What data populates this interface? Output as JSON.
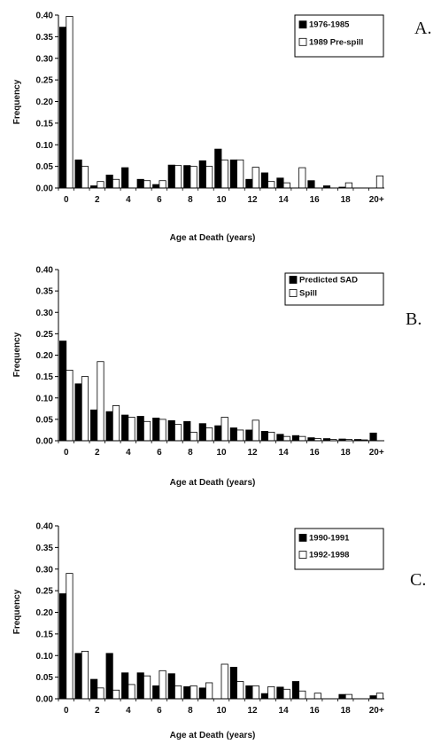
{
  "chart_data": [
    {
      "type": "bar",
      "panel_label": "A.",
      "xlabel": "Age at Death (years)",
      "ylabel": "Frequency",
      "ylim": [
        0,
        0.4
      ],
      "yticks": [
        "0.00",
        "0.05",
        "0.10",
        "0.15",
        "0.20",
        "0.25",
        "0.30",
        "0.35",
        "0.40"
      ],
      "categories": [
        "0",
        "1",
        "2",
        "3",
        "4",
        "5",
        "6",
        "7",
        "8",
        "9",
        "10",
        "11",
        "12",
        "13",
        "14",
        "15",
        "16",
        "17",
        "18",
        "19",
        "20+"
      ],
      "xtick_labels": [
        "0",
        "",
        "2",
        "",
        "4",
        "",
        "6",
        "",
        "8",
        "",
        "10",
        "",
        "12",
        "",
        "14",
        "",
        "16",
        "",
        "18",
        "",
        "20+"
      ],
      "legend_position": "top-right",
      "series": [
        {
          "name": "1976-1985",
          "fill": "#000000",
          "values": [
            0.372,
            0.065,
            0.005,
            0.03,
            0.047,
            0.02,
            0.008,
            0.053,
            0.052,
            0.063,
            0.09,
            0.065,
            0.02,
            0.035,
            0.023,
            0.0,
            0.017,
            0.005,
            0.002,
            0.0,
            0.0
          ]
        },
        {
          "name": "1989 Pre-spill",
          "fill": "#ffffff",
          "values": [
            0.397,
            0.05,
            0.015,
            0.02,
            0.0,
            0.017,
            0.017,
            0.052,
            0.05,
            0.05,
            0.065,
            0.065,
            0.048,
            0.015,
            0.012,
            0.047,
            0.0,
            0.0,
            0.012,
            0.0,
            0.028
          ]
        }
      ]
    },
    {
      "type": "bar",
      "panel_label": "B.",
      "xlabel": "Age at Death (years)",
      "ylabel": "Frequency",
      "ylim": [
        0,
        0.4
      ],
      "yticks": [
        "0.00",
        "0.05",
        "0.10",
        "0.15",
        "0.20",
        "0.25",
        "0.30",
        "0.35",
        "0.40"
      ],
      "categories": [
        "0",
        "1",
        "2",
        "3",
        "4",
        "5",
        "6",
        "7",
        "8",
        "9",
        "10",
        "11",
        "12",
        "13",
        "14",
        "15",
        "16",
        "17",
        "18",
        "19",
        "20+"
      ],
      "xtick_labels": [
        "0",
        "",
        "2",
        "",
        "4",
        "",
        "6",
        "",
        "8",
        "",
        "10",
        "",
        "12",
        "",
        "14",
        "",
        "16",
        "",
        "18",
        "",
        "20+"
      ],
      "legend_position": "top-right",
      "series": [
        {
          "name": "Predicted SAD",
          "fill": "#000000",
          "values": [
            0.233,
            0.133,
            0.072,
            0.068,
            0.06,
            0.057,
            0.053,
            0.047,
            0.045,
            0.04,
            0.035,
            0.03,
            0.025,
            0.022,
            0.015,
            0.012,
            0.007,
            0.005,
            0.004,
            0.003,
            0.018
          ]
        },
        {
          "name": "Spill",
          "fill": "#ffffff",
          "values": [
            0.165,
            0.15,
            0.185,
            0.082,
            0.055,
            0.045,
            0.05,
            0.038,
            0.02,
            0.03,
            0.055,
            0.025,
            0.048,
            0.02,
            0.01,
            0.01,
            0.005,
            0.003,
            0.003,
            0.002,
            0.0
          ]
        }
      ]
    },
    {
      "type": "bar",
      "panel_label": "C.",
      "xlabel": "Age at Death (years)",
      "ylabel": "Frequency",
      "ylim": [
        0,
        0.4
      ],
      "yticks": [
        "0.00",
        "0.05",
        "0.10",
        "0.15",
        "0.20",
        "0.25",
        "0.30",
        "0.35",
        "0.40"
      ],
      "categories": [
        "0",
        "1",
        "2",
        "3",
        "4",
        "5",
        "6",
        "7",
        "8",
        "9",
        "10",
        "11",
        "12",
        "13",
        "14",
        "15",
        "16",
        "17",
        "18",
        "19",
        "20+"
      ],
      "xtick_labels": [
        "0",
        "",
        "2",
        "",
        "4",
        "",
        "6",
        "",
        "8",
        "",
        "10",
        "",
        "12",
        "",
        "14",
        "",
        "16",
        "",
        "18",
        "",
        "20+"
      ],
      "legend_position": "top-right",
      "series": [
        {
          "name": "1990-1991",
          "fill": "#000000",
          "values": [
            0.243,
            0.105,
            0.045,
            0.105,
            0.06,
            0.06,
            0.03,
            0.058,
            0.028,
            0.025,
            0.0,
            0.073,
            0.03,
            0.012,
            0.027,
            0.04,
            0.0,
            0.0,
            0.01,
            0.0,
            0.007
          ]
        },
        {
          "name": "1992-1998",
          "fill": "#ffffff",
          "values": [
            0.29,
            0.11,
            0.025,
            0.02,
            0.033,
            0.053,
            0.065,
            0.03,
            0.03,
            0.037,
            0.08,
            0.04,
            0.03,
            0.028,
            0.022,
            0.018,
            0.013,
            0.0,
            0.01,
            0.0,
            0.013
          ]
        }
      ]
    }
  ]
}
